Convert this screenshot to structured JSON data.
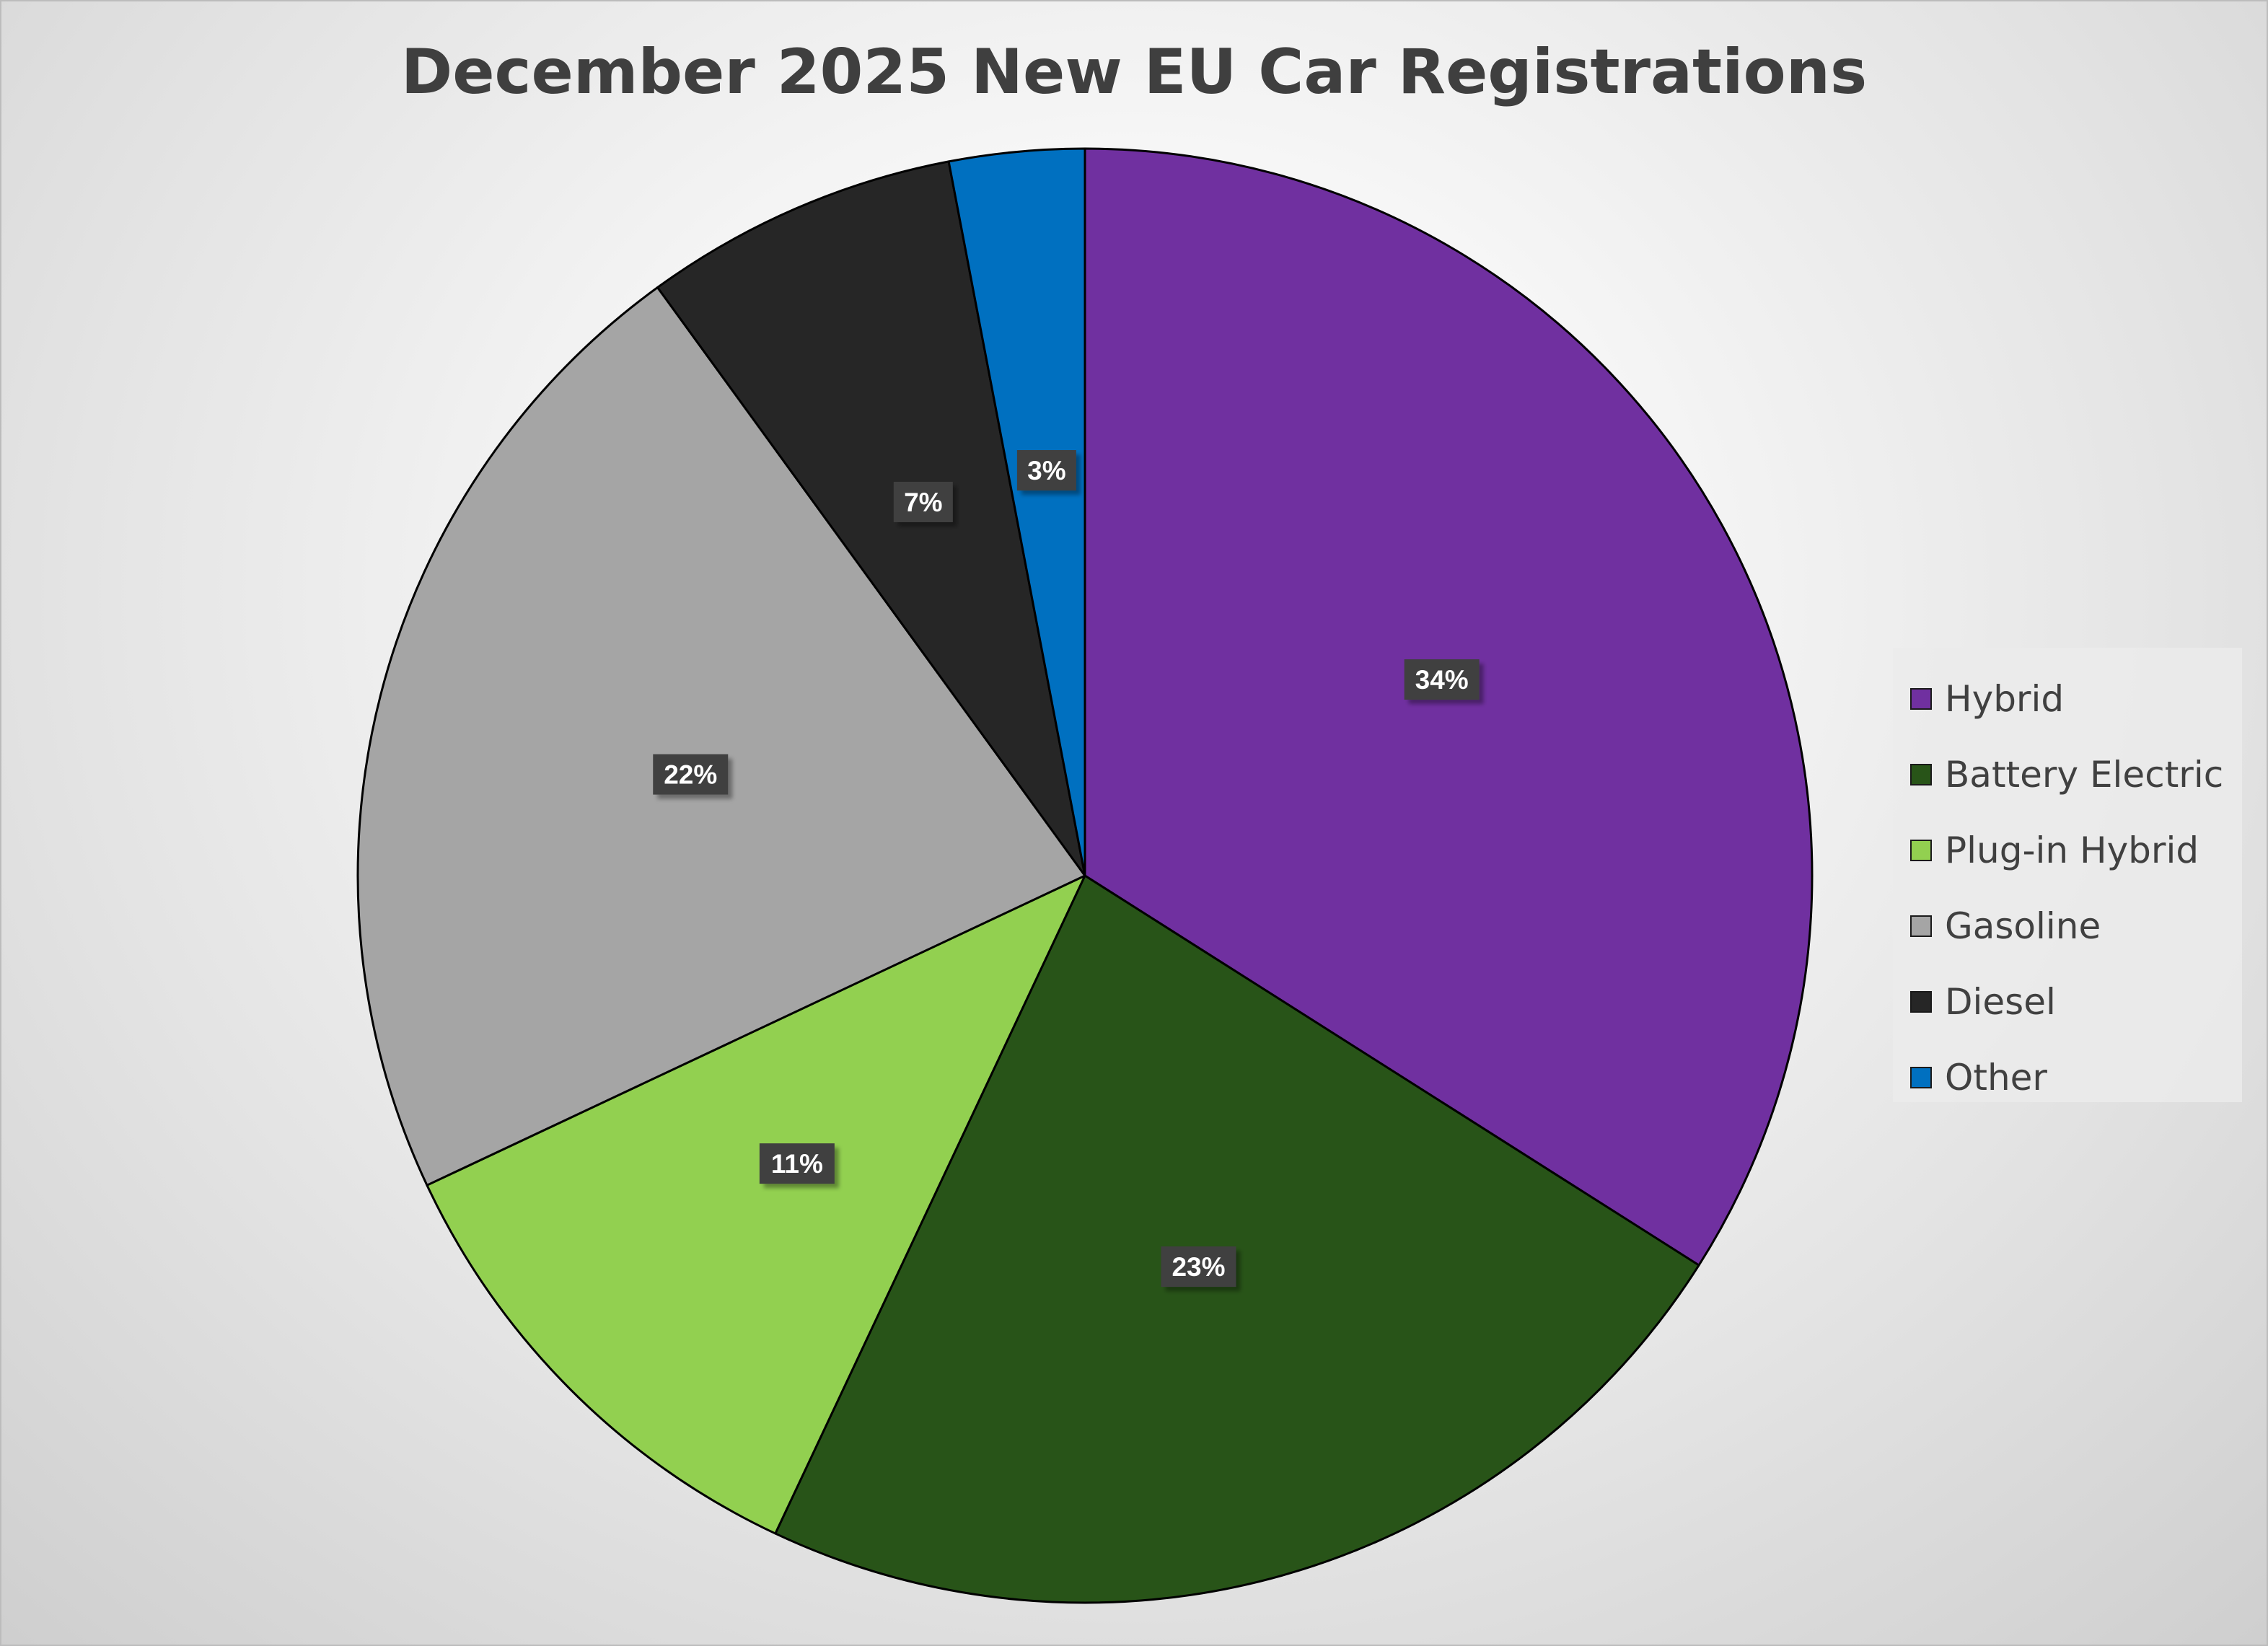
{
  "chart_data": {
    "type": "pie",
    "title": "December 2025 New EU Car Registrations",
    "legend_position": "right",
    "start_angle_deg": 0,
    "direction": "clockwise",
    "slices": [
      {
        "name": "Hybrid",
        "value": 34,
        "label": "34%",
        "color": "#7030A0"
      },
      {
        "name": "Battery Electric",
        "value": 23,
        "label": "23%",
        "color": "#285418"
      },
      {
        "name": "Plug-in Hybrid",
        "value": 11,
        "label": "11%",
        "color": "#92D050"
      },
      {
        "name": "Gasoline",
        "value": 22,
        "label": "22%",
        "color": "#A5A5A5"
      },
      {
        "name": "Diesel",
        "value": 7,
        "label": "7%",
        "color": "#262626"
      },
      {
        "name": "Other",
        "value": 3,
        "label": "3%",
        "color": "#0070C0"
      }
    ]
  }
}
